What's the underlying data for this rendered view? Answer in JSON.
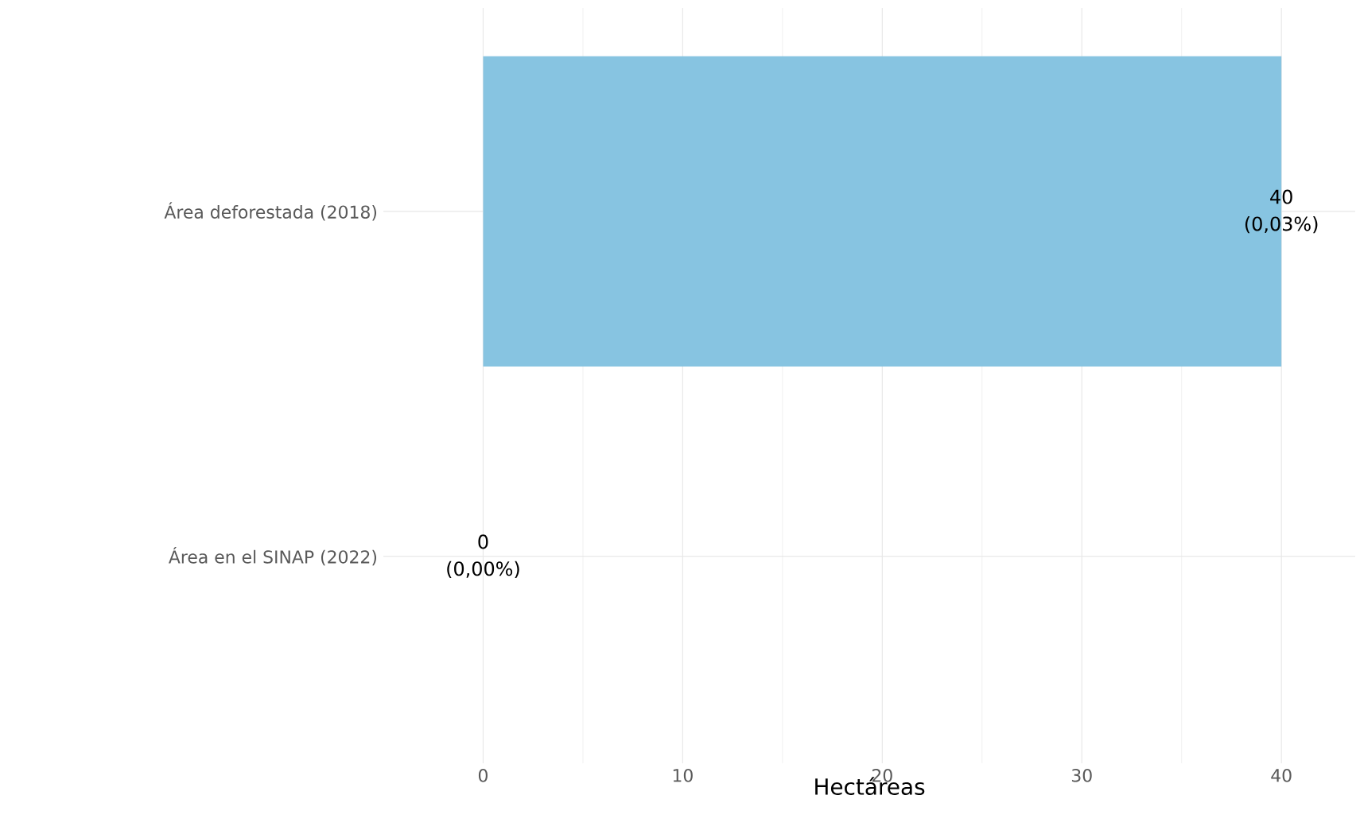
{
  "chart_data": {
    "type": "bar",
    "orientation": "horizontal",
    "xlabel": "Hectáreas",
    "categories": [
      "Área deforestada (2018)",
      "Área en el SINAP (2022)"
    ],
    "values": [
      40,
      0
    ],
    "color": "#87c4e1",
    "value_labels": [
      "40 (0,03%)",
      "0 (0,00%)"
    ],
    "xlim": [
      -5,
      43.7
    ],
    "xticks": [
      0,
      10,
      20,
      30,
      40
    ],
    "grid": true
  }
}
